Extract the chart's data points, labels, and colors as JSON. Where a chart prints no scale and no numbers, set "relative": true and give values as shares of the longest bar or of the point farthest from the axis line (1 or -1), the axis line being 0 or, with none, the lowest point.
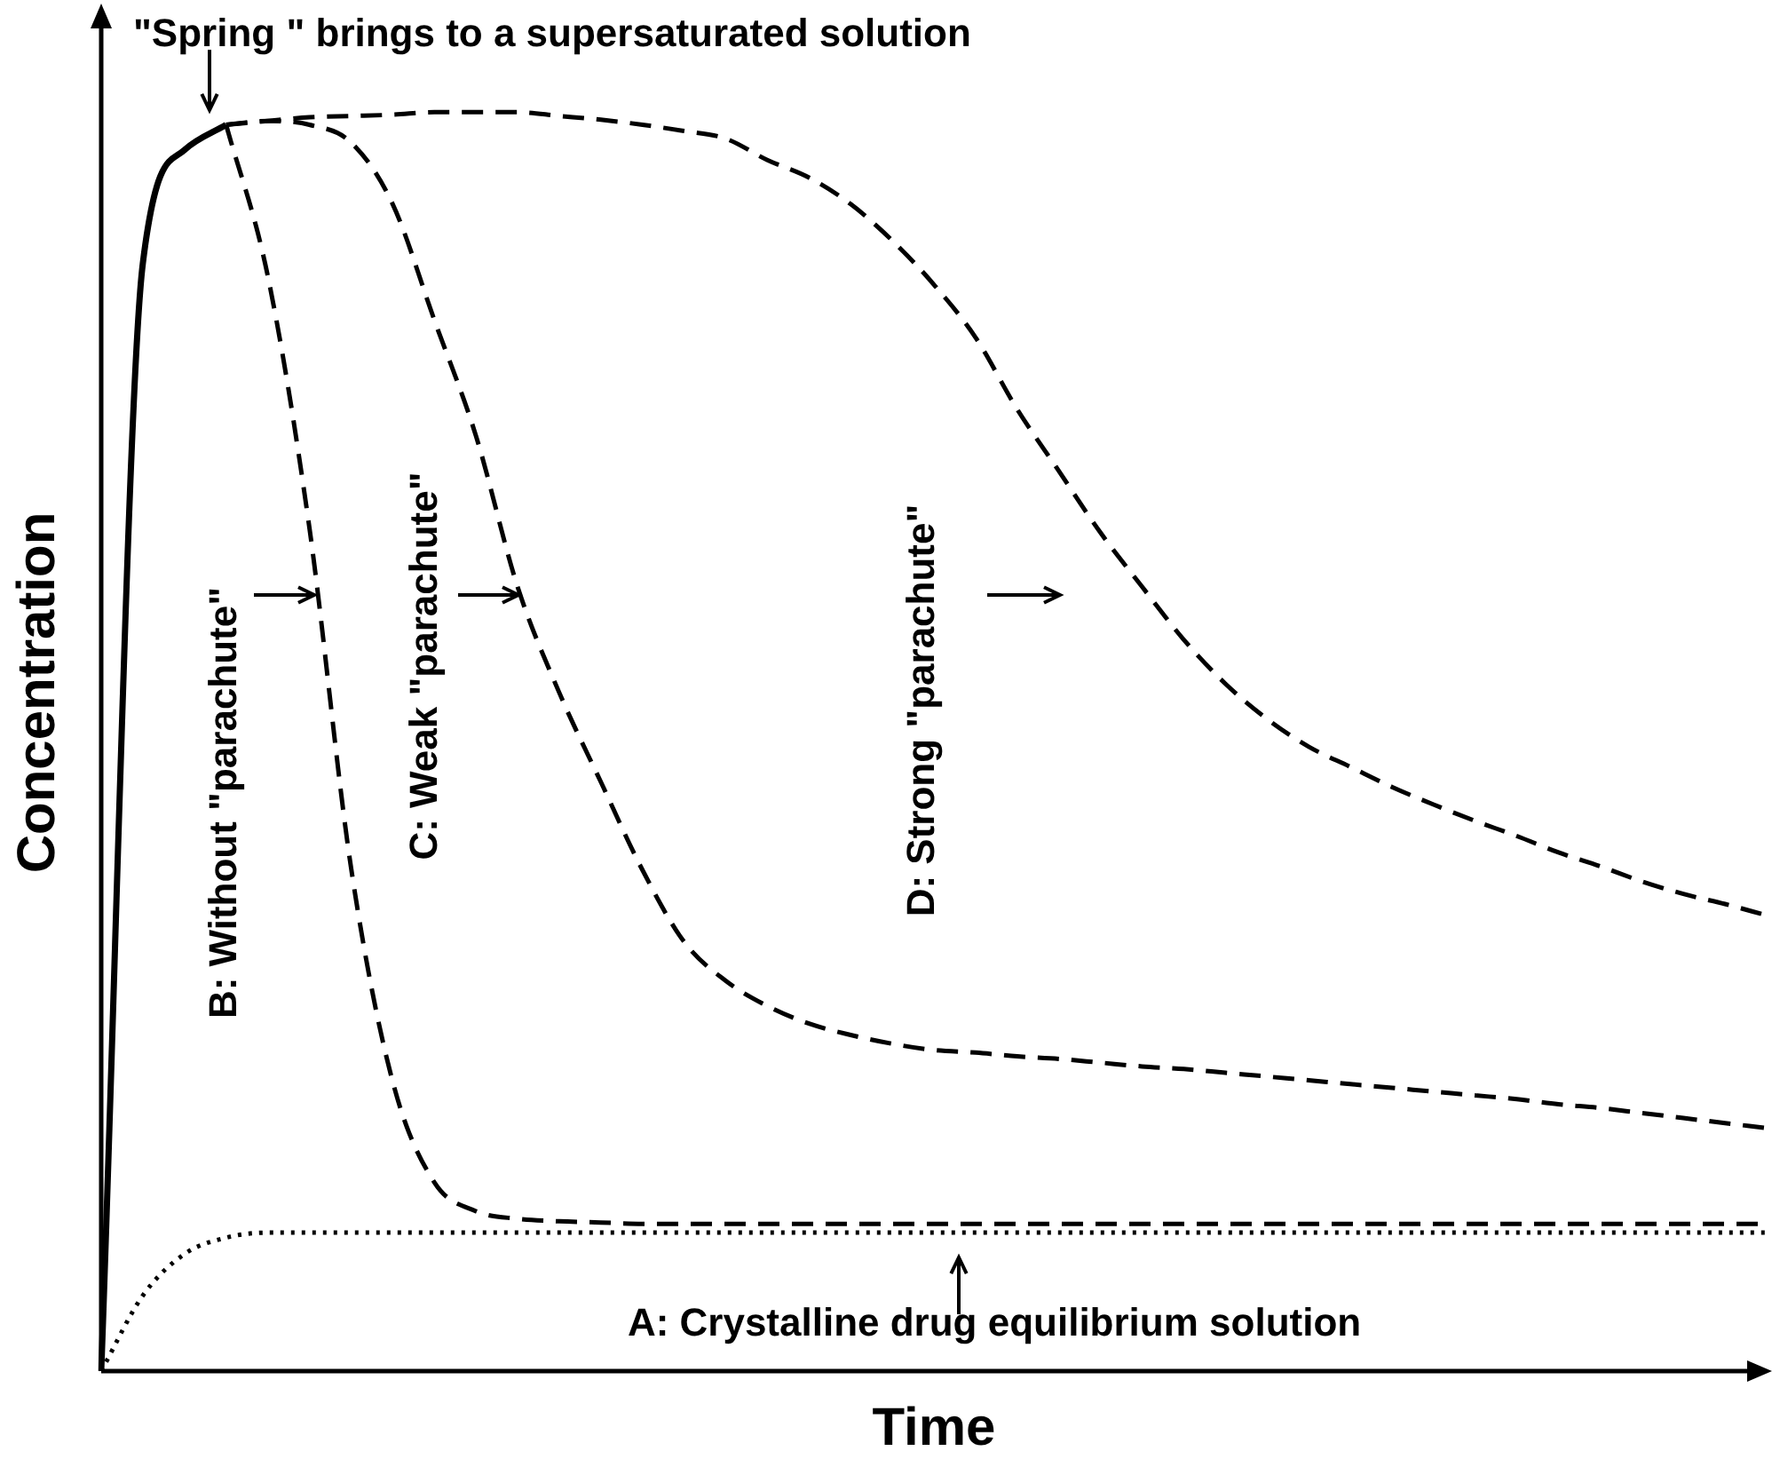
{
  "chart_data": {
    "type": "line",
    "relative": true,
    "xlabel": "Time",
    "ylabel": "Concentration",
    "legend": false,
    "marker": "none",
    "categories": [
      null,
      null,
      null,
      null,
      null,
      null,
      null,
      null,
      null,
      null,
      null,
      null,
      null,
      null,
      null,
      null,
      null,
      null,
      null,
      null,
      null,
      null,
      null,
      null,
      null,
      null,
      null,
      null,
      null,
      null,
      null,
      null,
      null,
      null,
      null,
      null,
      null,
      null,
      null,
      null,
      null
    ],
    "annotations": [
      "\"Spring \" brings to a supersaturated solution",
      "A: Crystalline drug equilibrium solution",
      "B: Without \"parachute\"",
      "C: Weak \"parachute\"",
      "D: Strong \"parachute\""
    ],
    "series": [
      {
        "color": "#000000",
        "line_style": "solid",
        "values": [
          0,
          0.88,
          0.97,
          0.99,
          null,
          null,
          null,
          null,
          null,
          null,
          null,
          null,
          null,
          null,
          null,
          null,
          null,
          null,
          null,
          null,
          null,
          null,
          null,
          null,
          null,
          null,
          null,
          null,
          null,
          null,
          null,
          null,
          null,
          null,
          null,
          null,
          null,
          null,
          null,
          null,
          null
        ]
      },
      {
        "color": "#000000",
        "line_style": "dotted",
        "values": [
          0,
          0.06,
          0.093,
          0.106,
          0.11,
          0.11,
          0.11,
          0.11,
          0.11,
          0.11,
          0.11,
          0.11,
          0.11,
          0.11,
          0.11,
          0.11,
          0.11,
          0.11,
          0.11,
          0.11,
          0.11,
          0.11,
          0.11,
          0.11,
          0.11,
          0.11,
          0.11,
          0.11,
          0.11,
          0.11,
          0.11,
          0.11,
          0.11,
          0.11,
          0.11,
          0.11,
          0.11,
          0.11,
          0.11,
          0.11,
          0.11
        ]
      },
      {
        "color": "#000000",
        "line_style": "dashed",
        "values": [
          null,
          null,
          null,
          0.99,
          0.87,
          0.67,
          0.4,
          0.23,
          0.15,
          0.127,
          0.121,
          0.119,
          0.118,
          0.117,
          0.117,
          0.117,
          0.117,
          0.117,
          0.117,
          0.117,
          0.117,
          0.117,
          0.117,
          0.117,
          0.117,
          0.117,
          0.117,
          0.117,
          0.117,
          0.117,
          0.117,
          0.117,
          0.117,
          0.117,
          0.117,
          0.117,
          0.117,
          0.117,
          0.117,
          0.117,
          0.117
        ]
      },
      {
        "color": "#000000",
        "line_style": "dashed",
        "values": [
          null,
          null,
          null,
          0.99,
          0.993,
          0.99,
          0.976,
          0.927,
          0.835,
          0.743,
          0.623,
          0.539,
          0.468,
          0.398,
          0.341,
          0.31,
          0.29,
          0.276,
          0.267,
          0.26,
          0.255,
          0.253,
          0.25,
          0.248,
          0.245,
          0.242,
          0.24,
          0.237,
          0.234,
          0.231,
          0.228,
          0.225,
          0.222,
          0.219,
          0.216,
          0.212,
          0.209,
          0.205,
          0.201,
          0.197,
          0.193
        ]
      },
      {
        "color": "#000000",
        "line_style": "dashed",
        "values": [
          null,
          null,
          null,
          0.99,
          0.993,
          0.996,
          0.997,
          0.998,
          1,
          1,
          1,
          0.997,
          0.994,
          0.99,
          0.985,
          0.979,
          0.962,
          0.948,
          0.927,
          0.898,
          0.863,
          0.821,
          0.764,
          0.715,
          0.666,
          0.623,
          0.581,
          0.546,
          0.518,
          0.496,
          0.48,
          0.464,
          0.45,
          0.437,
          0.425,
          0.412,
          0.401,
          0.389,
          0.379,
          0.371,
          0.362
        ]
      }
    ]
  }
}
